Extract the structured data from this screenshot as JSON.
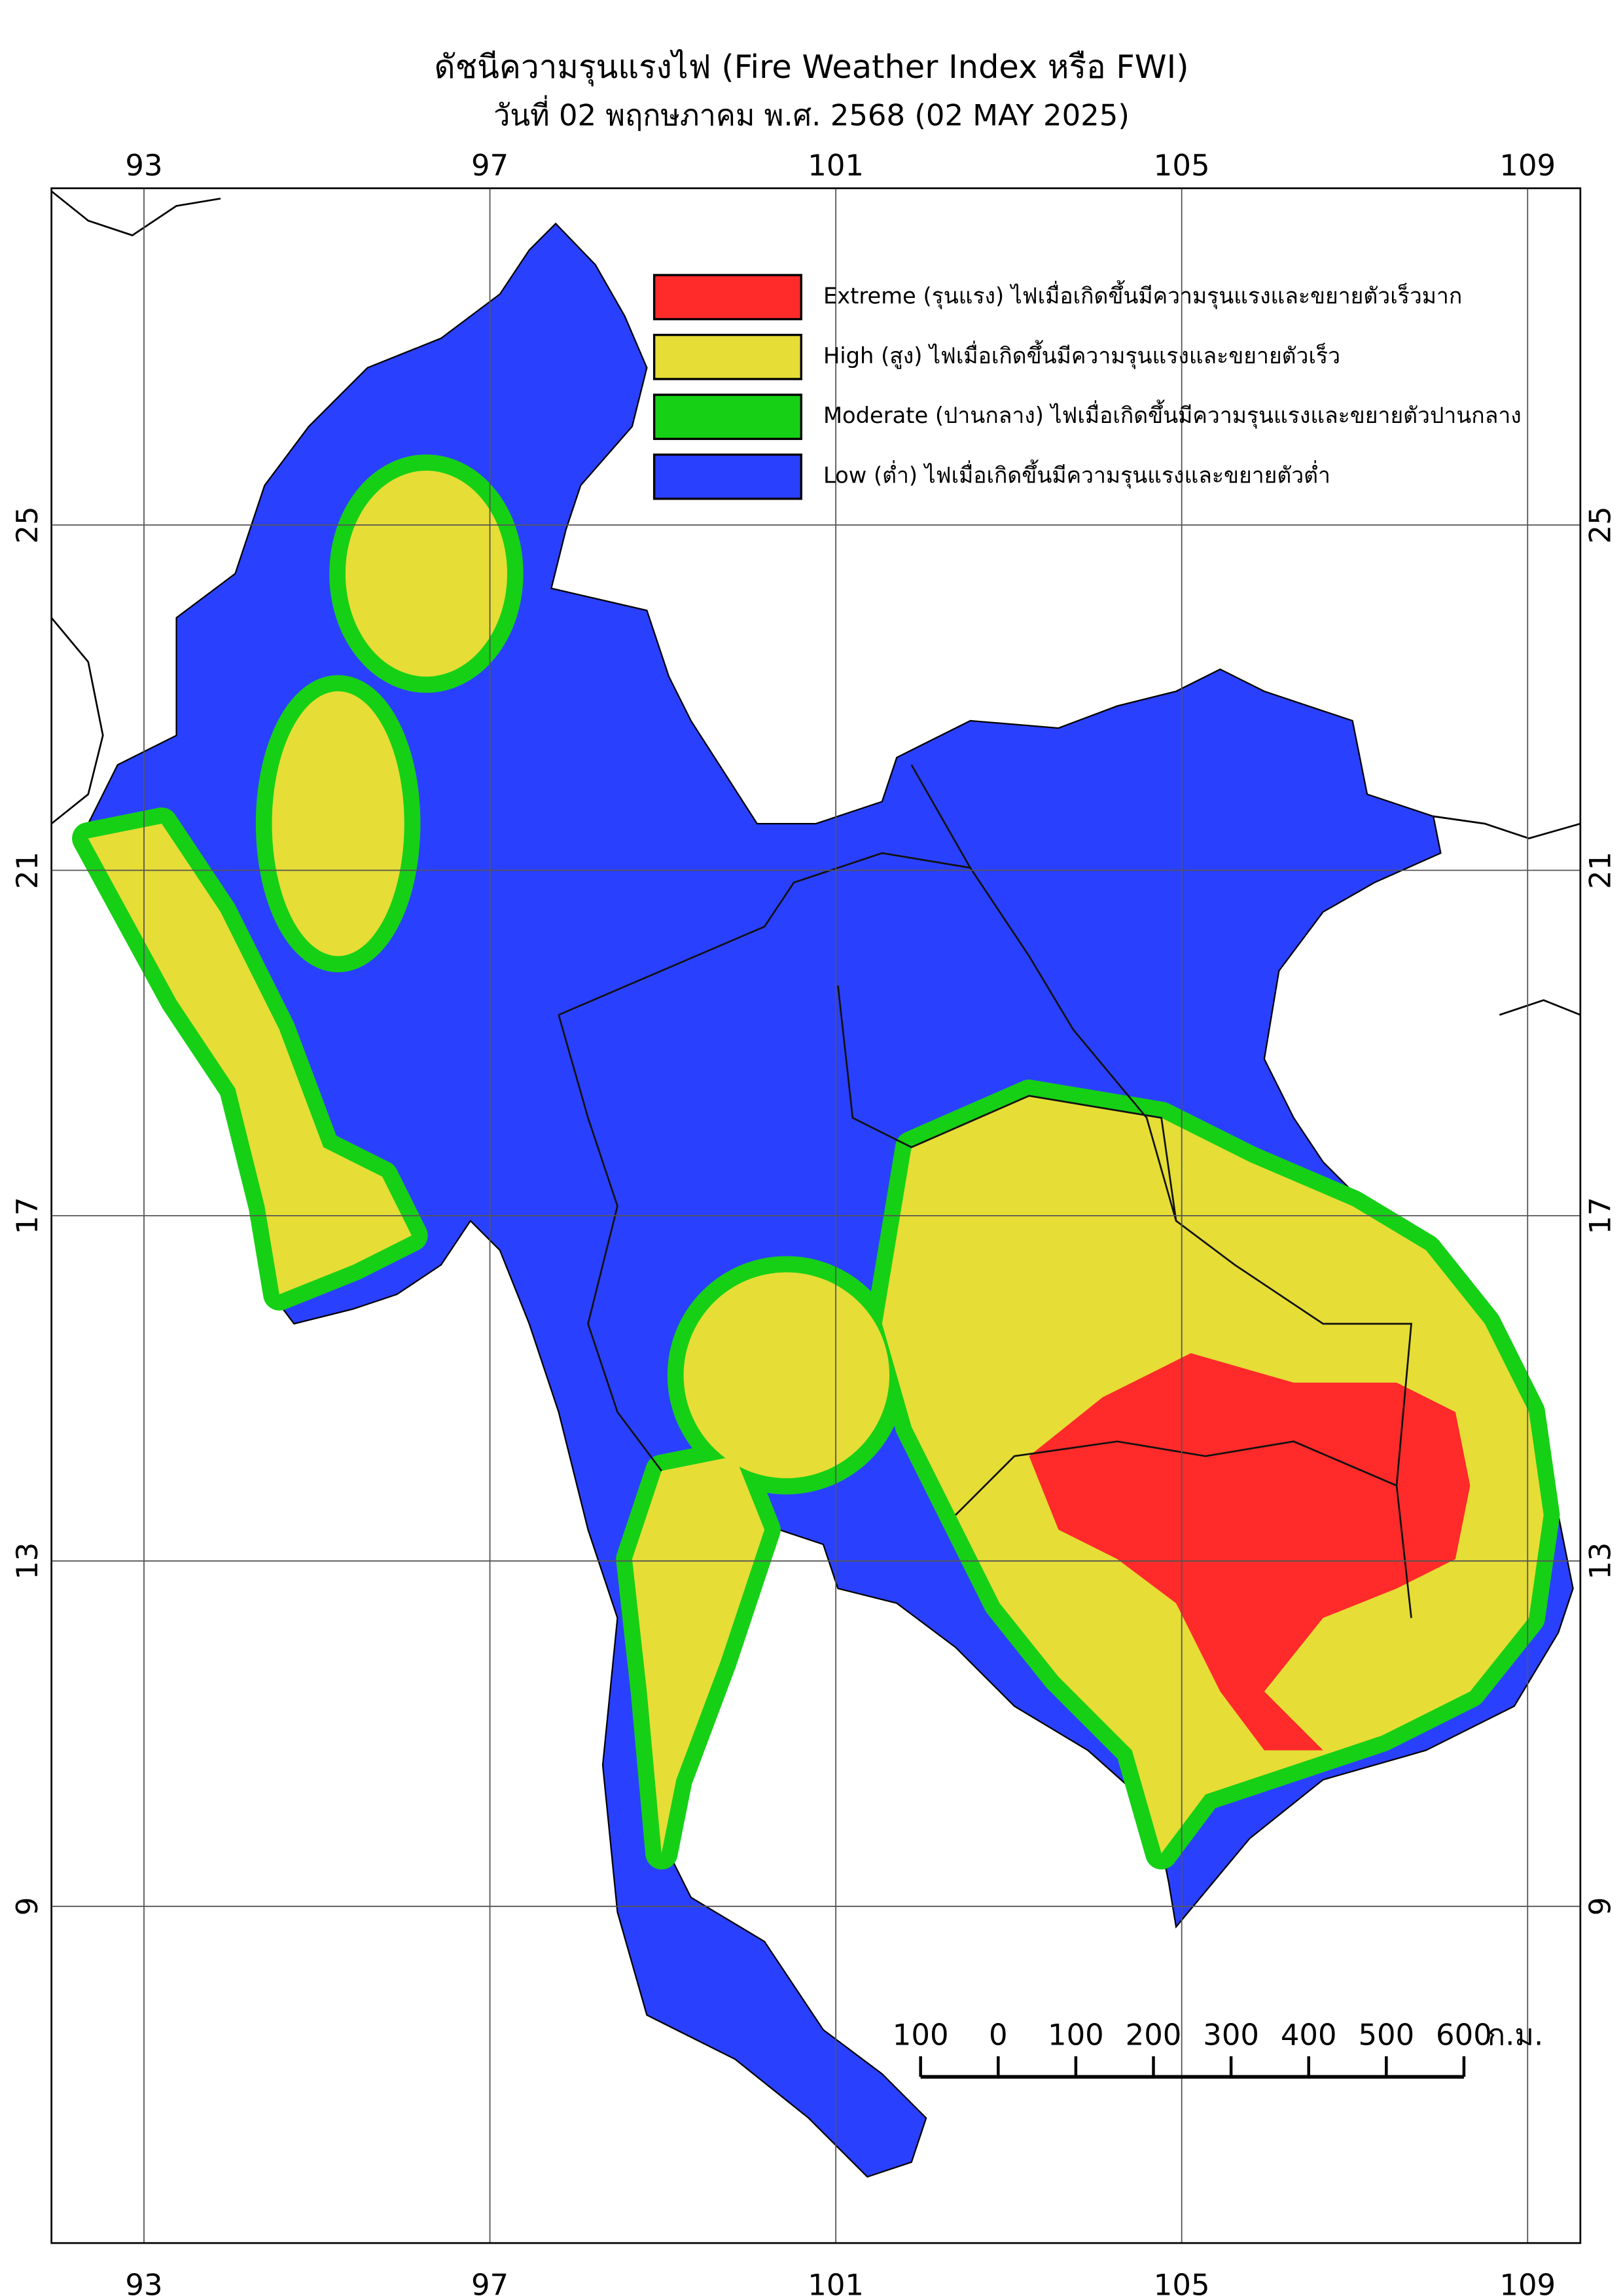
{
  "chart_data": {
    "type": "map",
    "title": "ดัชนีความรุนแรงไฟ (Fire Weather Index หรือ FWI)",
    "subtitle": "วันที่ 02 พฤกษภาคม พ.ศ. 2568 (02 MAY 2025)",
    "xlim": [
      91.93,
      109.61
    ],
    "ylim": [
      5.1,
      28.9
    ],
    "xticks": [
      93,
      97,
      101,
      105,
      109
    ],
    "yticks": [
      25,
      21,
      17,
      13,
      9
    ],
    "grid": true,
    "series": [
      {
        "name": "Extreme (รุนแรง) ไฟเมื่อเกิดขึ้นมีความรุนแรงและขยายตัวเร็วมาก",
        "color": "#ff2a2a"
      },
      {
        "name": "High (สูง) ไฟเมื่อเกิดขึ้นมีความรุนแรงและขยายตัวเร็ว",
        "color": "#e6dd36"
      },
      {
        "name": "Moderate (ปานกลาง) ไฟเมื่อเกิดขึ้นมีความรุนแรงและขยายตัวปานกลาง",
        "color": "#16d016"
      },
      {
        "name": "Low (ต่ำ) ไฟเมื่อเกิดขึ้นมีความรุนแรงและขยายตัวต่ำ",
        "color": "#2a40ff"
      }
    ],
    "scale_bar": {
      "ticks": [
        {
          "value": -100,
          "label": "100"
        },
        0,
        100,
        200,
        300,
        400,
        500,
        600
      ],
      "unit": "ก.ม."
    }
  }
}
